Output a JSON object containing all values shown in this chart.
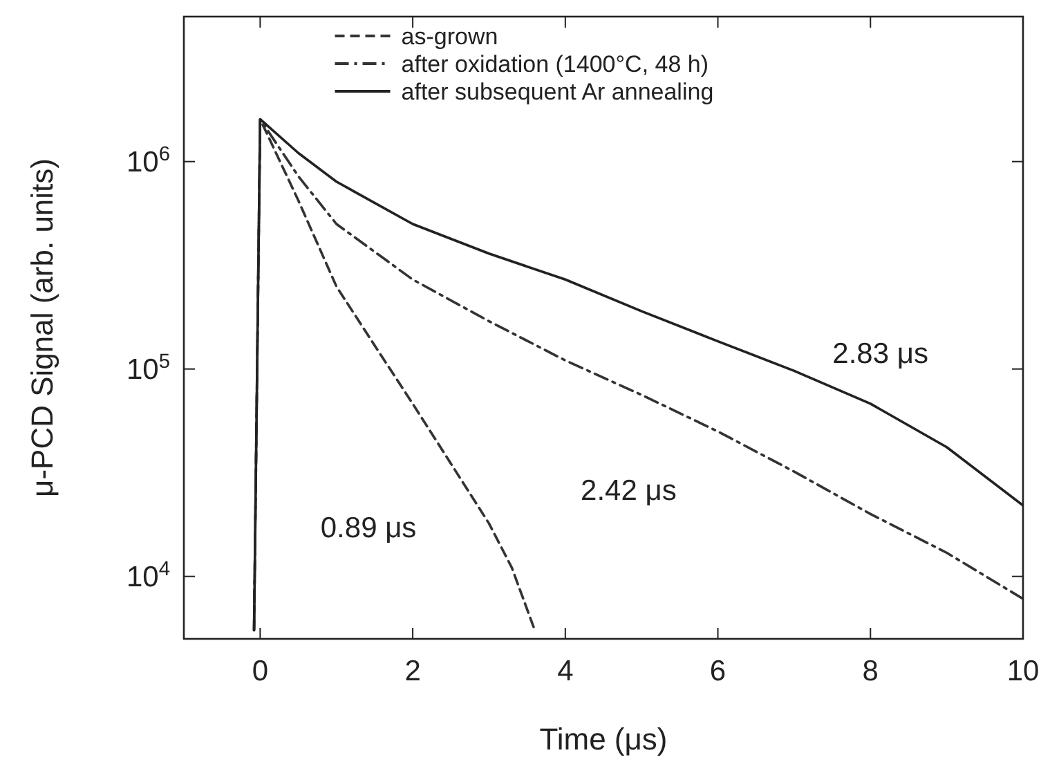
{
  "chart_data": {
    "type": "line",
    "xlabel": "Time (μs)",
    "ylabel": "μ-PCD Signal (arb. units)",
    "log": "y",
    "xlim": [
      -1,
      10
    ],
    "ylim": [
      5000,
      5000000
    ],
    "xticks": [
      0,
      2,
      4,
      6,
      8,
      10
    ],
    "yticks": [
      {
        "value": 10000,
        "label": "10$^{4}$"
      },
      {
        "value": 100000,
        "label": "10$^{5}$"
      },
      {
        "value": 1000000,
        "label": "10$^{6}$"
      }
    ],
    "legend": "top",
    "grid": false,
    "series": [
      {
        "name": "as-grown",
        "color": "#333333",
        "line_style": "dashed",
        "x": [
          -0.08,
          -0.03,
          0,
          0.5,
          1,
          1.5,
          2,
          2.5,
          3,
          3.3,
          3.6
        ],
        "values": [
          5500,
          200000,
          1600000,
          650000,
          250000,
          130000,
          68000,
          35000,
          18000,
          11000,
          5500
        ]
      },
      {
        "name": "after oxidation (1400°C, 48 h)",
        "color": "#333333",
        "line_style": "dashdot",
        "x": [
          -0.08,
          -0.03,
          0,
          0.5,
          1,
          2,
          3,
          4,
          5,
          6,
          7,
          8,
          9,
          10
        ],
        "values": [
          5500,
          200000,
          1600000,
          850000,
          500000,
          270000,
          170000,
          110000,
          75000,
          50000,
          32000,
          20000,
          13000,
          7800
        ]
      },
      {
        "name": "after subsequent Ar annealing",
        "color": "#222222",
        "line_style": "solid",
        "x": [
          -0.08,
          -0.03,
          0,
          0.5,
          1,
          2,
          3,
          4,
          5,
          6,
          7,
          8,
          9,
          10
        ],
        "values": [
          5500,
          200000,
          1600000,
          1100000,
          800000,
          500000,
          360000,
          270000,
          190000,
          136000,
          98000,
          68000,
          42000,
          22000
        ]
      }
    ],
    "annotations": [
      "0.89 μs",
      "2.42 μs",
      "2.83 μs"
    ]
  }
}
